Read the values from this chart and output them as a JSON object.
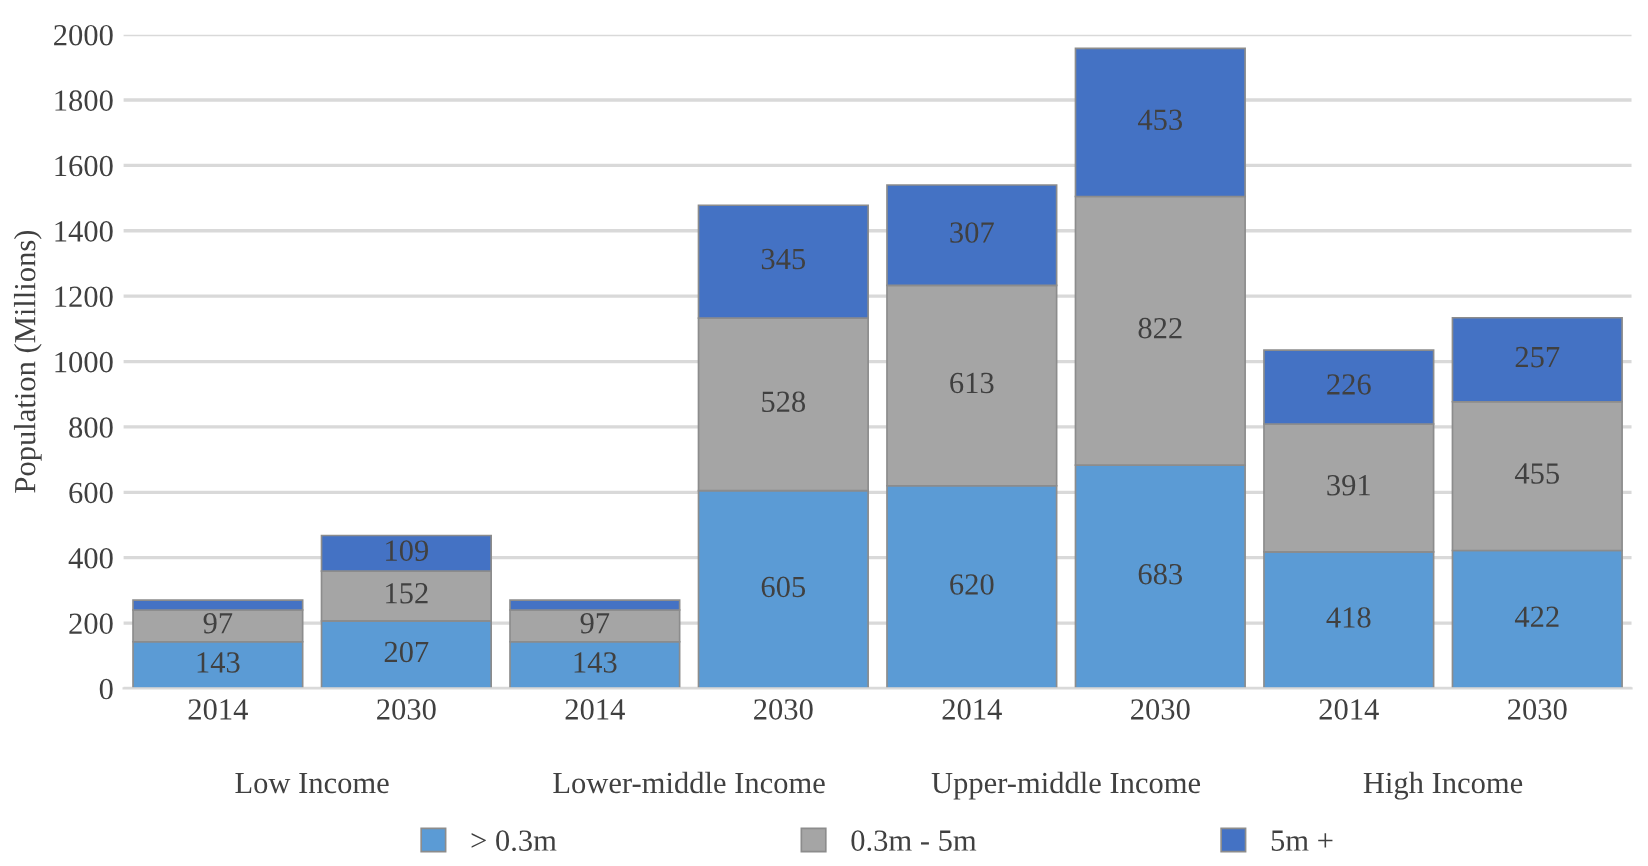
{
  "chart_data": {
    "type": "bar",
    "stacked": true,
    "ylabel": "Population (Millions)",
    "categories": [
      "2014",
      "2030",
      "2014",
      "2030",
      "2014",
      "2030",
      "2014",
      "2030"
    ],
    "series": [
      {
        "name": "> 0.3m",
        "color": "#5b9bd5",
        "values": [
          143,
          207,
          143,
          605,
          620,
          683,
          418,
          422
        ],
        "value_labels": [
          "143",
          "207",
          "143",
          "605",
          "620",
          "683",
          "418",
          "422"
        ]
      },
      {
        "name": "0.3m - 5m",
        "color": "#a5a5a5",
        "values": [
          97,
          152,
          97,
          528,
          613,
          822,
          391,
          455
        ],
        "value_labels": [
          "97",
          "152",
          "97",
          "528",
          "613",
          "822",
          "391",
          "455"
        ]
      },
      {
        "name": "5m +",
        "color": "#4472c4",
        "values": [
          30,
          109,
          30,
          345,
          307,
          453,
          226,
          257
        ],
        "value_labels": [
          null,
          "109",
          null,
          "345",
          "307",
          "453",
          "226",
          "257"
        ]
      }
    ],
    "annotations": [
      "Low Income",
      "Lower-middle Income",
      "Upper-middle Income",
      "High Income"
    ],
    "ylim": [
      0,
      2000
    ],
    "yticks": [
      0,
      200,
      400,
      600,
      800,
      1000,
      1200,
      1400,
      1600,
      1800,
      2000
    ],
    "grid": "y",
    "legend": "bottom"
  }
}
